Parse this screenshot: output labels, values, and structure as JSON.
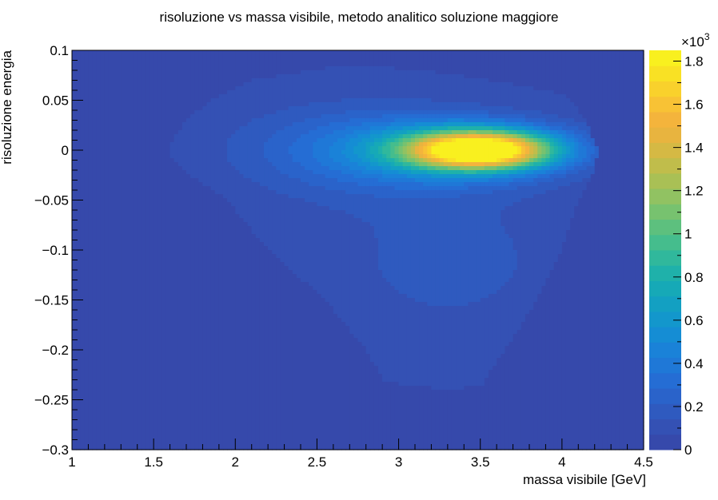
{
  "chart_data": {
    "type": "heatmap",
    "title": "risoluzione vs massa visibile,  metodo analitico soluzione maggiore",
    "xlabel": "massa visibile [GeV]",
    "ylabel": "risoluzione energia",
    "xlim": [
      1,
      4.5
    ],
    "ylim": [
      -0.3,
      0.1
    ],
    "x_ticks": [
      "1",
      "1.5",
      "2",
      "2.5",
      "3",
      "3.5",
      "4",
      "4.5"
    ],
    "x_tick_values": [
      1,
      1.5,
      2,
      2.5,
      3,
      3.5,
      4,
      4.5
    ],
    "y_ticks": [
      "0.1",
      "0.05",
      "0",
      "−0.05",
      "−0.1",
      "−0.15",
      "−0.2",
      "−0.25",
      "−0.3"
    ],
    "y_tick_values": [
      0.1,
      0.05,
      0,
      -0.05,
      -0.1,
      -0.15,
      -0.2,
      -0.25,
      -0.3
    ],
    "z_ticks": [
      "0",
      "0.2",
      "0.4",
      "0.6",
      "0.8",
      "1",
      "1.2",
      "1.4",
      "1.6",
      "1.8"
    ],
    "z_tick_values": [
      0,
      0.2,
      0.4,
      0.6,
      0.8,
      1.0,
      1.2,
      1.4,
      1.6,
      1.8
    ],
    "z_multiplier": "×10",
    "z_exponent": "3",
    "zlim": [
      0,
      1.85
    ],
    "grid": false,
    "palette": [
      "#3649ab",
      "#3451b4",
      "#2f5abf",
      "#2a63ca",
      "#256dd4",
      "#1f78d7",
      "#1a82d8",
      "#158dd4",
      "#1397cc",
      "#13a0c2",
      "#16a9b7",
      "#1fb1aa",
      "#30b89c",
      "#45bd8d",
      "#5dc07e",
      "#77c26f",
      "#91c262",
      "#a9c055",
      "#c0bd4b",
      "#d5b944",
      "#e8b43f",
      "#f4b43c",
      "#f8c235",
      "#f9d12c",
      "#f9e124",
      "#f9f01f"
    ],
    "density_features": [
      {
        "name": "core",
        "x": 3.5,
        "y": 0.0,
        "sx": 0.3,
        "sy": 0.013,
        "amp": 1.8
      },
      {
        "name": "halo",
        "x": 3.3,
        "y": 0.0,
        "sx": 0.5,
        "sy": 0.022,
        "amp": 0.48
      },
      {
        "name": "wing",
        "x": 2.7,
        "y": 0.0,
        "sx": 0.55,
        "sy": 0.035,
        "amp": 0.18
      },
      {
        "name": "tail",
        "x": 3.3,
        "y": -0.11,
        "sx": 0.55,
        "sy": 0.06,
        "amp": 0.11
      }
    ],
    "support_outline": {
      "y": [
        0.085,
        0.07,
        0.05,
        0.03,
        0.0,
        -0.02,
        -0.05,
        -0.1,
        -0.15,
        -0.2,
        -0.25,
        -0.29
      ],
      "x_min": [
        2.65,
        2.1,
        1.85,
        1.7,
        1.58,
        1.68,
        1.95,
        2.2,
        2.55,
        2.8,
        2.98,
        3.08
      ],
      "x_max": [
        3.65,
        3.95,
        4.05,
        4.15,
        4.22,
        4.2,
        4.1,
        4.0,
        3.85,
        3.65,
        3.45,
        3.3
      ]
    }
  }
}
